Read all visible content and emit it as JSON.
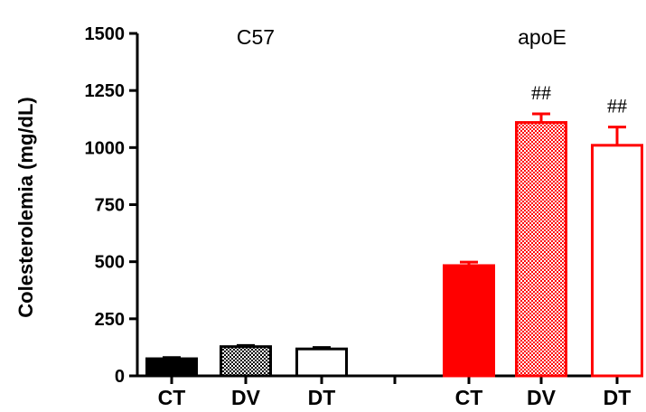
{
  "chart_data": {
    "type": "bar",
    "title": "",
    "xlabel": "",
    "ylabel": "Colesterolemia (mg/dL)",
    "ylim": [
      0,
      1500
    ],
    "yticks": [
      0,
      250,
      500,
      750,
      1000,
      1250,
      1500
    ],
    "grid": false,
    "groups": [
      {
        "name": "C57",
        "color": "#000000",
        "bars": [
          {
            "category": "CT",
            "value": 75,
            "error": 5,
            "fill": "solid",
            "annotation": ""
          },
          {
            "category": "DV",
            "value": 128,
            "error": 5,
            "fill": "hatched",
            "annotation": ""
          },
          {
            "category": "DT",
            "value": 118,
            "error": 6,
            "fill": "open",
            "annotation": ""
          }
        ]
      },
      {
        "name": "apoE",
        "color": "#ff0000",
        "bars": [
          {
            "category": "CT",
            "value": 483,
            "error": 15,
            "fill": "solid",
            "annotation": ""
          },
          {
            "category": "DV",
            "value": 1110,
            "error": 38,
            "fill": "hatched",
            "annotation": "##"
          },
          {
            "category": "DT",
            "value": 1010,
            "error": 80,
            "fill": "open",
            "annotation": "##"
          }
        ]
      }
    ]
  }
}
